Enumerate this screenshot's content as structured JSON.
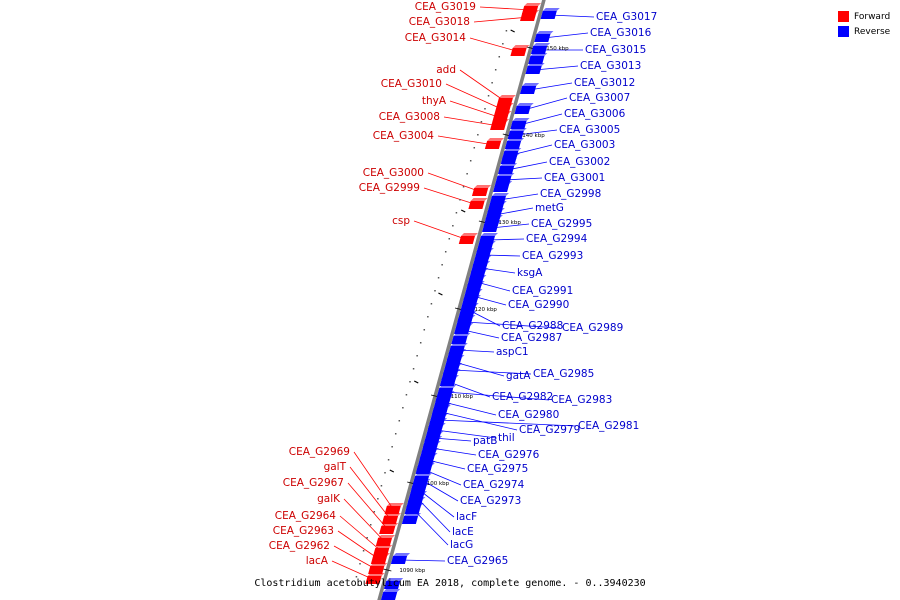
{
  "caption": "Clostridium acetobutylicum EA 2018, complete genome. - 0..3940230",
  "legend": [
    {
      "label": "Forward",
      "color": "#ff0000"
    },
    {
      "label": "Reverse",
      "color": "#0000ff"
    }
  ],
  "colors": {
    "forward": "#ff0000",
    "forward_text": "#cc0000",
    "reverse": "#0000ff",
    "reverse_text": "#0000cc",
    "backbone": "#808080"
  },
  "ticks": [
    "1150 kbp",
    "1140 kbp",
    "1130 kbp",
    "1120 kbp",
    "1110 kbp",
    "1100 kbp",
    "1090 kbp"
  ],
  "forward_genes": [
    "CEA_G3019",
    "CEA_G3018",
    "CEA_G3014",
    "add",
    "CEA_G3010",
    "thyA",
    "CEA_G3008",
    "CEA_G3004",
    "CEA_G3000",
    "CEA_G2999",
    "csp",
    "CEA_G2969",
    "galT",
    "CEA_G2967",
    "galK",
    "CEA_G2964",
    "CEA_G2963",
    "CEA_G2962",
    "lacA"
  ],
  "reverse_genes": [
    "CEA_G3017",
    "CEA_G3016",
    "CEA_G3015",
    "CEA_G3013",
    "CEA_G3012",
    "CEA_G3007",
    "CEA_G3006",
    "CEA_G3005",
    "CEA_G3003",
    "CEA_G3002",
    "CEA_G3001",
    "CEA_G2998",
    "metG",
    "CEA_G2995",
    "CEA_G2994",
    "CEA_G2993",
    "ksgA",
    "CEA_G2991",
    "CEA_G2990",
    "CEA_G2988",
    "CEA_G2989",
    "CEA_G2987",
    "aspC1",
    "gatA",
    "CEA_G2985",
    "CEA_G2982",
    "CEA_G2983",
    "CEA_G2980",
    "CEA_G2979",
    "CEA_G2981",
    "thil",
    "patB",
    "CEA_G2976",
    "CEA_G2975",
    "CEA_G2974",
    "CEA_G2973",
    "lacF",
    "lacE",
    "lacG",
    "CEA_G2965"
  ]
}
